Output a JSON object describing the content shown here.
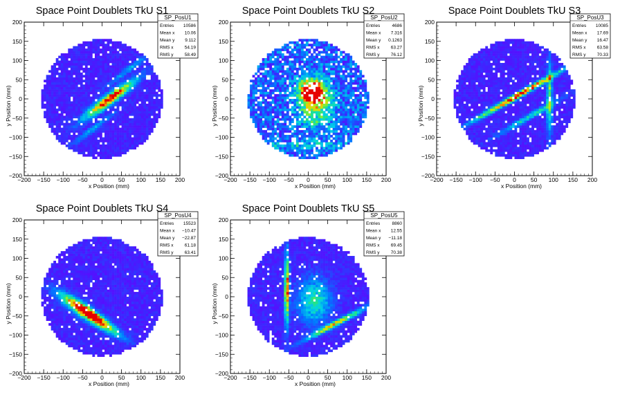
{
  "chart_data": [
    {
      "type": "heatmap",
      "title": "Space Point Doublets TkU S1",
      "xlabel": "x Position (mm)",
      "ylabel": "y Position (mm)",
      "xlim": [
        -200,
        200
      ],
      "ylim": [
        -200,
        200
      ],
      "xticks": [
        -200,
        -150,
        -100,
        -50,
        0,
        50,
        100,
        150,
        200
      ],
      "yticks": [
        -200,
        -150,
        -100,
        -50,
        0,
        50,
        100,
        150,
        200
      ],
      "detector_radius_mm": 155,
      "stats": {
        "name": "SP_PosU1",
        "rows": [
          {
            "label": "Entries",
            "value": "10586"
          },
          {
            "label": "Mean x",
            "value": "10.06"
          },
          {
            "label": "Mean y",
            "value": "9.112"
          },
          {
            "label": "RMS x",
            "value": "54.19"
          },
          {
            "label": "RMS y",
            "value": "58.49"
          }
        ]
      },
      "hotspots": [
        {
          "x": 20,
          "y": 0,
          "sx": 55,
          "sy": 9,
          "angle_deg": 37,
          "amp": 1.0
        },
        {
          "x": 75,
          "y": 82,
          "sx": 55,
          "sy": 5,
          "angle_deg": 37,
          "amp": 0.28
        },
        {
          "x": -20,
          "y": -75,
          "sx": 55,
          "sy": 5,
          "angle_deg": 37,
          "amp": 0.28
        }
      ]
    },
    {
      "type": "heatmap",
      "title": "Space Point Doublets TkU S2",
      "xlabel": "x Position (mm)",
      "ylabel": "y Position (mm)",
      "xlim": [
        -200,
        200
      ],
      "ylim": [
        -200,
        200
      ],
      "xticks": [
        -200,
        -150,
        -100,
        -50,
        0,
        50,
        100,
        150,
        200
      ],
      "yticks": [
        -200,
        -150,
        -100,
        -50,
        0,
        50,
        100,
        150,
        200
      ],
      "detector_radius_mm": 155,
      "stats": {
        "name": "SP_PosU2",
        "rows": [
          {
            "label": "Entries",
            "value": "4686"
          },
          {
            "label": "Mean x",
            "value": "7.316"
          },
          {
            "label": "Mean y",
            "value": "0.1263"
          },
          {
            "label": "RMS x",
            "value": "63.27"
          },
          {
            "label": "RMS y",
            "value": "76.12"
          }
        ]
      },
      "hotspots": [
        {
          "x": 10,
          "y": 20,
          "sx": 22,
          "sy": 22,
          "angle_deg": 0,
          "amp": 1.0
        },
        {
          "x": 20,
          "y": -20,
          "sx": 30,
          "sy": 40,
          "angle_deg": 0,
          "amp": 0.45
        },
        {
          "x": 0,
          "y": -120,
          "sx": 90,
          "sy": 6,
          "angle_deg": 0,
          "amp": 0.25
        }
      ]
    },
    {
      "type": "heatmap",
      "title": "Space Point Doublets TkU S3",
      "xlabel": "x Position (mm)",
      "ylabel": "y Position (mm)",
      "xlim": [
        -200,
        200
      ],
      "ylim": [
        -200,
        200
      ],
      "xticks": [
        -200,
        -150,
        -100,
        -50,
        0,
        50,
        100,
        150,
        200
      ],
      "yticks": [
        -200,
        -150,
        -100,
        -50,
        0,
        50,
        100,
        150,
        200
      ],
      "detector_radius_mm": 155,
      "stats": {
        "name": "SP_PosU3",
        "rows": [
          {
            "label": "Entries",
            "value": "10085"
          },
          {
            "label": "Mean x",
            "value": "17.69"
          },
          {
            "label": "Mean y",
            "value": "16.47"
          },
          {
            "label": "RMS x",
            "value": "63.58"
          },
          {
            "label": "RMS y",
            "value": "70.33"
          }
        ]
      },
      "hotspots": [
        {
          "x": 10,
          "y": 10,
          "sx": 90,
          "sy": 5,
          "angle_deg": 30,
          "amp": 1.0
        },
        {
          "x": 90,
          "y": 0,
          "sx": 5,
          "sy": 70,
          "angle_deg": 0,
          "amp": 0.55
        },
        {
          "x": 40,
          "y": -45,
          "sx": 65,
          "sy": 5,
          "angle_deg": 30,
          "amp": 0.45
        }
      ]
    },
    {
      "type": "heatmap",
      "title": "Space Point Doublets TkU S4",
      "xlabel": "x Position (mm)",
      "ylabel": "y Position (mm)",
      "xlim": [
        -200,
        200
      ],
      "ylim": [
        -200,
        200
      ],
      "xticks": [
        -200,
        -150,
        -100,
        -50,
        0,
        50,
        100,
        150,
        200
      ],
      "yticks": [
        -200,
        -150,
        -100,
        -50,
        0,
        50,
        100,
        150,
        200
      ],
      "detector_radius_mm": 155,
      "stats": {
        "name": "SP_PosU4",
        "rows": [
          {
            "label": "Entries",
            "value": "15523"
          },
          {
            "label": "Mean x",
            "value": "−10.47"
          },
          {
            "label": "Mean y",
            "value": "−22.87"
          },
          {
            "label": "RMS x",
            "value": "61.18"
          },
          {
            "label": "RMS y",
            "value": "63.41"
          }
        ]
      },
      "hotspots": [
        {
          "x": -25,
          "y": -50,
          "sx": 55,
          "sy": 9,
          "angle_deg": -35,
          "amp": 1.0
        },
        {
          "x": -60,
          "y": -30,
          "sx": 50,
          "sy": 14,
          "angle_deg": -35,
          "amp": 0.35
        }
      ]
    },
    {
      "type": "heatmap",
      "title": "Space Point Doublets TkU S5",
      "xlabel": "x Position (mm)",
      "ylabel": "y Position (mm)",
      "xlim": [
        -200,
        200
      ],
      "ylim": [
        -200,
        200
      ],
      "xticks": [
        -200,
        -150,
        -100,
        -50,
        0,
        50,
        100,
        150,
        200
      ],
      "yticks": [
        -200,
        -150,
        -100,
        -50,
        0,
        50,
        100,
        150,
        200
      ],
      "detector_radius_mm": 155,
      "stats": {
        "name": "SP_PosU5",
        "rows": [
          {
            "label": "Entries",
            "value": "8860"
          },
          {
            "label": "Mean x",
            "value": "12.55"
          },
          {
            "label": "Mean y",
            "value": "−11.18"
          },
          {
            "label": "RMS x",
            "value": "69.45"
          },
          {
            "label": "RMS y",
            "value": "70.38"
          }
        ]
      },
      "hotspots": [
        {
          "x": -55,
          "y": 20,
          "sx": 4,
          "sy": 65,
          "angle_deg": 0,
          "amp": 0.9
        },
        {
          "x": 70,
          "y": -70,
          "sx": 60,
          "sy": 5,
          "angle_deg": 28,
          "amp": 0.75
        },
        {
          "x": 15,
          "y": -10,
          "sx": 30,
          "sy": 40,
          "angle_deg": 0,
          "amp": 0.45
        }
      ]
    }
  ]
}
